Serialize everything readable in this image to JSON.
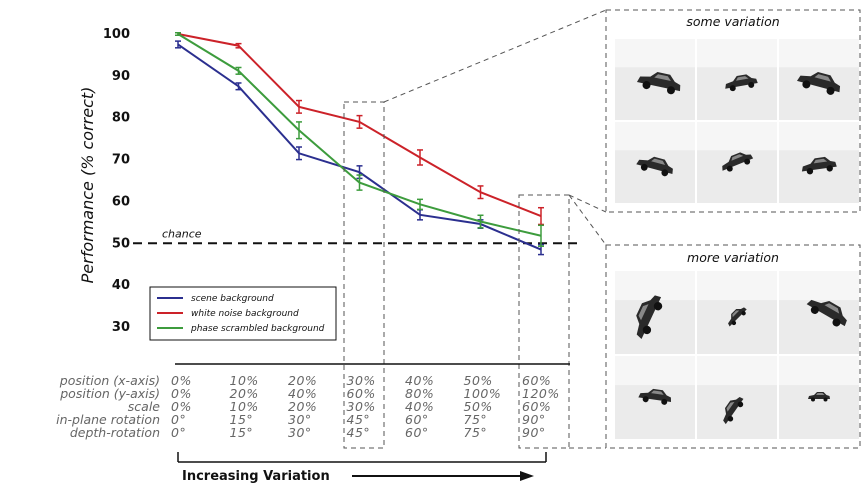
{
  "chart_data": {
    "type": "line",
    "ylabel": "Performance (% correct)",
    "ylim": [
      30,
      100
    ],
    "yticks": [
      "30",
      "40",
      "50",
      "60",
      "70",
      "80",
      "90",
      "100"
    ],
    "x": [
      0,
      1,
      2,
      3,
      4,
      5,
      6
    ],
    "chance": {
      "label": "chance",
      "value": 50
    },
    "legend": {
      "placement": "lower-left"
    },
    "series": [
      {
        "name": "scene background",
        "color": "#2b2f8f",
        "values": [
          97.5,
          87.5,
          71.5,
          67,
          56.8,
          54.6,
          48.5
        ],
        "errors": [
          0.8,
          0.8,
          1.5,
          1.5,
          1.2,
          1.0,
          1.2
        ]
      },
      {
        "name": "white noise background",
        "color": "#cc2229",
        "values": [
          100,
          97.2,
          82.6,
          79,
          70.5,
          62.2,
          56.5
        ],
        "errors": [
          0.3,
          0.5,
          1.5,
          1.5,
          1.8,
          1.5,
          2.0
        ]
      },
      {
        "name": "phase scrambled background",
        "color": "#3d9c3d",
        "values": [
          100,
          91.2,
          77,
          64.5,
          59.3,
          55.2,
          51.8
        ],
        "errors": [
          0.3,
          0.8,
          2.0,
          1.8,
          1.2,
          1.5,
          2.5
        ]
      }
    ]
  },
  "variation_table": {
    "rows": [
      {
        "label": "position (x-axis)",
        "values": [
          "0%",
          "10%",
          "20%",
          "30%",
          "40%",
          "50%",
          "60%"
        ]
      },
      {
        "label": "position (y-axis)",
        "values": [
          "0%",
          "20%",
          "40%",
          "60%",
          "80%",
          "100%",
          "120%"
        ]
      },
      {
        "label": "scale",
        "values": [
          "0%",
          "10%",
          "20%",
          "30%",
          "40%",
          "50%",
          "60%"
        ]
      },
      {
        "label": "in-plane rotation",
        "values": [
          "0°",
          "15°",
          "30°",
          "45°",
          "60°",
          "75°",
          "90°"
        ]
      },
      {
        "label": "depth-rotation",
        "values": [
          "0°",
          "15°",
          "30°",
          "45°",
          "60°",
          "75°",
          "90°"
        ]
      }
    ]
  },
  "footer": {
    "label": "Increasing Variation"
  },
  "panels": {
    "some": {
      "title": "some variation"
    },
    "more": {
      "title": "more variation"
    }
  }
}
